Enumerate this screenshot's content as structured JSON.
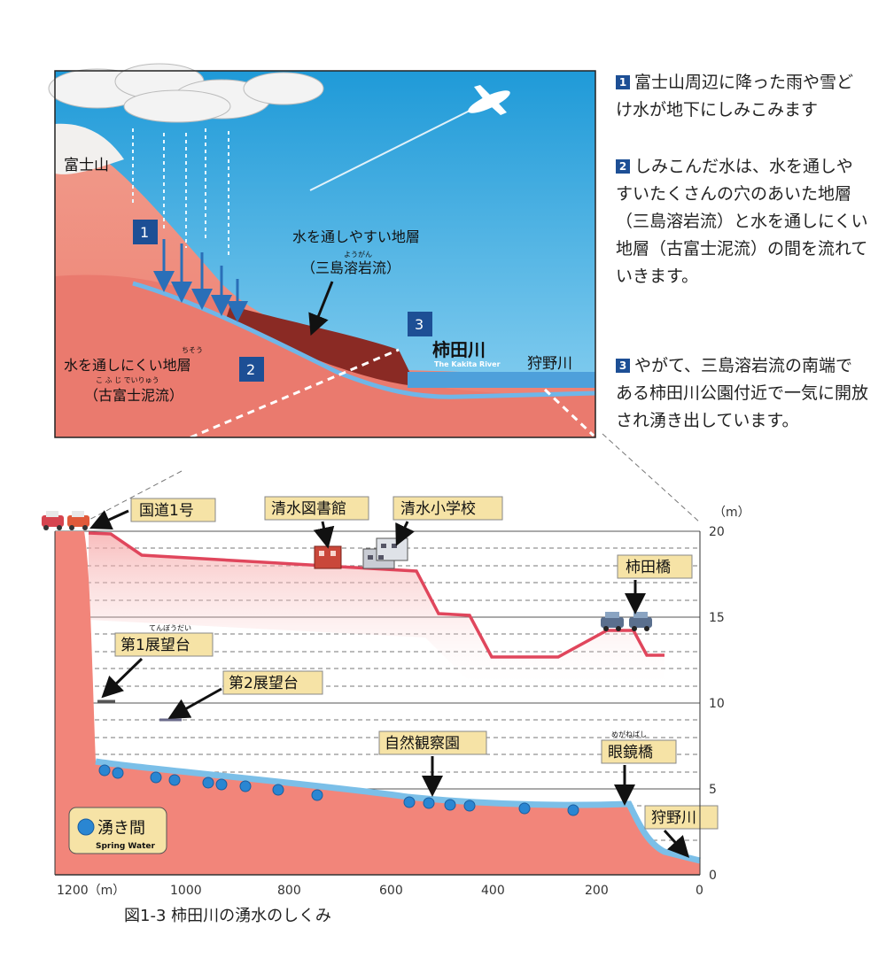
{
  "explanations": [
    {
      "num": "1",
      "text": "富士山周辺に降った雨や雪どけ水が地下にしみこみます"
    },
    {
      "num": "2",
      "text": "しみこんだ水は、水を通しやすいたくさんの穴のあいた地層（三島溶岩流）と水を通しにくい地層（古富士泥流）の間を流れていきます。"
    },
    {
      "num": "3",
      "text": "やがて、三島溶岩流の南端である柿田川公園付近で一気に開放され湧き出しています。"
    }
  ],
  "top_diagram": {
    "fuji": "富士山",
    "permeable_layer": "水を通しやすい地層",
    "mishima_lava": "（三島溶岩流）",
    "mishima_ruby": "ようがん",
    "impermeable_layer": "水を通しにくい地層",
    "impermeable_ruby": "ちそう",
    "kofuji_mudflow": "（古富士泥流）",
    "kofuji_ruby": "こ ふ じ でいりゅう",
    "kakita_river": "柿田川",
    "kakita_river_en": "The Kakita River",
    "kano_river": "狩野川",
    "marker1": "1",
    "marker2": "2",
    "marker3": "3"
  },
  "profile": {
    "unit_m_right": "（m）",
    "y_ticks": [
      "20",
      "15",
      "10",
      "5",
      "0"
    ],
    "x_ticks": [
      "1200（m）",
      "1000",
      "800",
      "600",
      "400",
      "200",
      "0"
    ],
    "labels": {
      "route1": "国道1号",
      "library": "清水図書館",
      "school": "清水小学校",
      "kakita_bridge": "柿田橋",
      "observation1": "第1展望台",
      "observation1_ruby": "てんぼうだい",
      "observation2": "第2展望台",
      "nature_garden": "自然観察園",
      "megane_bridge": "眼鏡橋",
      "megane_ruby": "めがねばし",
      "kano_river": "狩野川",
      "spring_jp": "湧き間",
      "spring_en": "Spring Water"
    }
  },
  "caption": "図1-3 柿田川の湧水のしくみ",
  "colors": {
    "sky": "#2fa6df",
    "ground": "#f2857a",
    "lava": "#8a2a24",
    "road": "#e0465c",
    "water": "#7bbfe8",
    "marker": "#1d4f95",
    "label_bg": "#f6e3a6"
  }
}
